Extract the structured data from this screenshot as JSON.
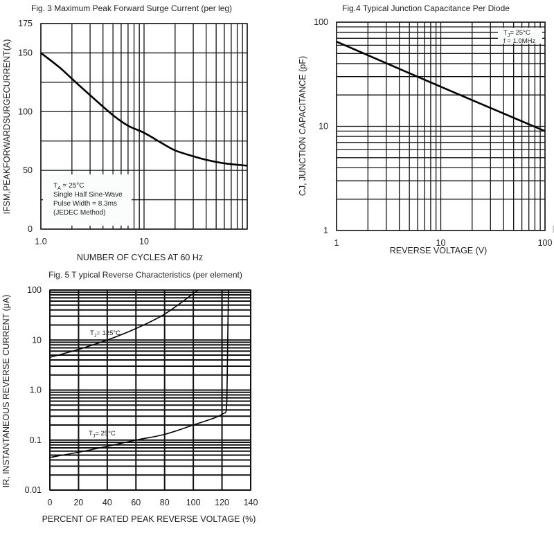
{
  "chart_data": [
    {
      "id": "fig3",
      "type": "line",
      "title": "Fig. 3  Maximum Peak Forward Surge Current (per leg)",
      "xlabel": "NUMBER OF CYCLES AT 60 Hz",
      "ylabel": "IFSM,PEAKFORWARDSURGECURRENT(A)",
      "xscale": "log",
      "yscale": "linear",
      "xlim": [
        1,
        100
      ],
      "ylim": [
        0,
        175
      ],
      "xticks": [
        {
          "v": 1,
          "label": "1.0"
        },
        {
          "v": 10,
          "label": "10"
        }
      ],
      "yticks": [
        {
          "v": 0,
          "label": "0"
        },
        {
          "v": 50,
          "label": "50"
        },
        {
          "v": 100,
          "label": "100"
        },
        {
          "v": 150,
          "label": "150"
        },
        {
          "v": 175,
          "label": "175"
        }
      ],
      "y_gridlines": [
        0,
        25,
        50,
        75,
        100,
        125,
        150,
        175
      ],
      "grid": true,
      "series": [
        {
          "name": "IFSM",
          "x": [
            1,
            1.5,
            2,
            3,
            5,
            7,
            10,
            15,
            20,
            30,
            40,
            60,
            100
          ],
          "y": [
            150,
            138,
            128,
            114,
            97,
            88,
            82,
            73,
            67,
            62,
            59,
            56,
            54
          ]
        }
      ],
      "legend": {
        "placement": "bottom-left",
        "lines": [
          {
            "sym": "T",
            "sub": "A",
            "rest": " = 25°C"
          },
          {
            "sym": "Single Half Sine-Wave",
            "sub": "",
            "rest": ""
          },
          {
            "sym": "Pulse Width = 8.3ms",
            "sub": "",
            "rest": ""
          },
          {
            "sym": "(JEDEC Method)",
            "sub": "",
            "rest": ""
          }
        ]
      }
    },
    {
      "id": "fig4",
      "type": "line",
      "title": "Fig.4 Typical Junction Capacitance Per Diode",
      "xlabel": "REVERSE VOLTAGE (V)",
      "ylabel": "CJ, JUNCTION CAPACITANCE (pF)",
      "xscale": "log",
      "yscale": "log",
      "xlim": [
        1,
        100
      ],
      "ylim": [
        1,
        100
      ],
      "xticks": [
        {
          "v": 1,
          "label": "1"
        },
        {
          "v": 10,
          "label": "10"
        },
        {
          "v": 100,
          "label": "100"
        }
      ],
      "yticks": [
        {
          "v": 1,
          "label": "1"
        },
        {
          "v": 10,
          "label": "10"
        },
        {
          "v": 100,
          "label": "100"
        }
      ],
      "grid": true,
      "series": [
        {
          "name": "CJ",
          "x": [
            1,
            10,
            100
          ],
          "y": [
            65,
            24,
            9
          ]
        }
      ],
      "legend": {
        "placement": "top-right",
        "lines": [
          {
            "sym": "T",
            "sub": "J",
            "rest": "= 25°C"
          },
          {
            "sym": "f = 1.0MHz",
            "sub": "",
            "rest": ""
          }
        ]
      }
    },
    {
      "id": "fig5",
      "type": "line",
      "title": "Fig. 5 T ypical Reverse Characteristics (per element)",
      "xlabel": "PERCENT OF RATED PEAK REVERSE VOLTAGE (%)",
      "ylabel": "IR, INSTANTANEOUS REVERSE CURRENT (μA)",
      "xscale": "linear",
      "yscale": "log",
      "xlim": [
        0,
        140
      ],
      "ylim": [
        0.01,
        100
      ],
      "xticks": [
        {
          "v": 0,
          "label": "0"
        },
        {
          "v": 20,
          "label": "20"
        },
        {
          "v": 40,
          "label": "40"
        },
        {
          "v": 60,
          "label": "60"
        },
        {
          "v": 80,
          "label": "80"
        },
        {
          "v": 100,
          "label": "100"
        },
        {
          "v": 120,
          "label": "120"
        },
        {
          "v": 140,
          "label": "140"
        }
      ],
      "yticks": [
        {
          "v": 0.01,
          "label": "0.01"
        },
        {
          "v": 0.1,
          "label": "0.1"
        },
        {
          "v": 1,
          "label": "1.0"
        },
        {
          "v": 10,
          "label": "10"
        },
        {
          "v": 100,
          "label": "100"
        }
      ],
      "x_gridlines": [
        0,
        20,
        40,
        60,
        80,
        100,
        120,
        140
      ],
      "grid": true,
      "series": [
        {
          "name": "TJ = 125°C",
          "x": [
            0,
            20,
            40,
            60,
            80,
            100,
            103
          ],
          "y": [
            4.5,
            6.5,
            10,
            17,
            33,
            85,
            100
          ]
        },
        {
          "name": "TJ = 25°C",
          "x": [
            0,
            20,
            40,
            60,
            80,
            100,
            115,
            121,
            123,
            123.5,
            124,
            124.5
          ],
          "y": [
            0.045,
            0.057,
            0.075,
            0.1,
            0.13,
            0.2,
            0.28,
            0.34,
            0.4,
            1.0,
            10,
            100
          ]
        }
      ],
      "annotations": [
        {
          "sym": "T",
          "sub": "J",
          "rest": "= 125°C"
        },
        {
          "sym": "T",
          "sub": "J",
          "rest": "= 25°C"
        }
      ]
    }
  ]
}
